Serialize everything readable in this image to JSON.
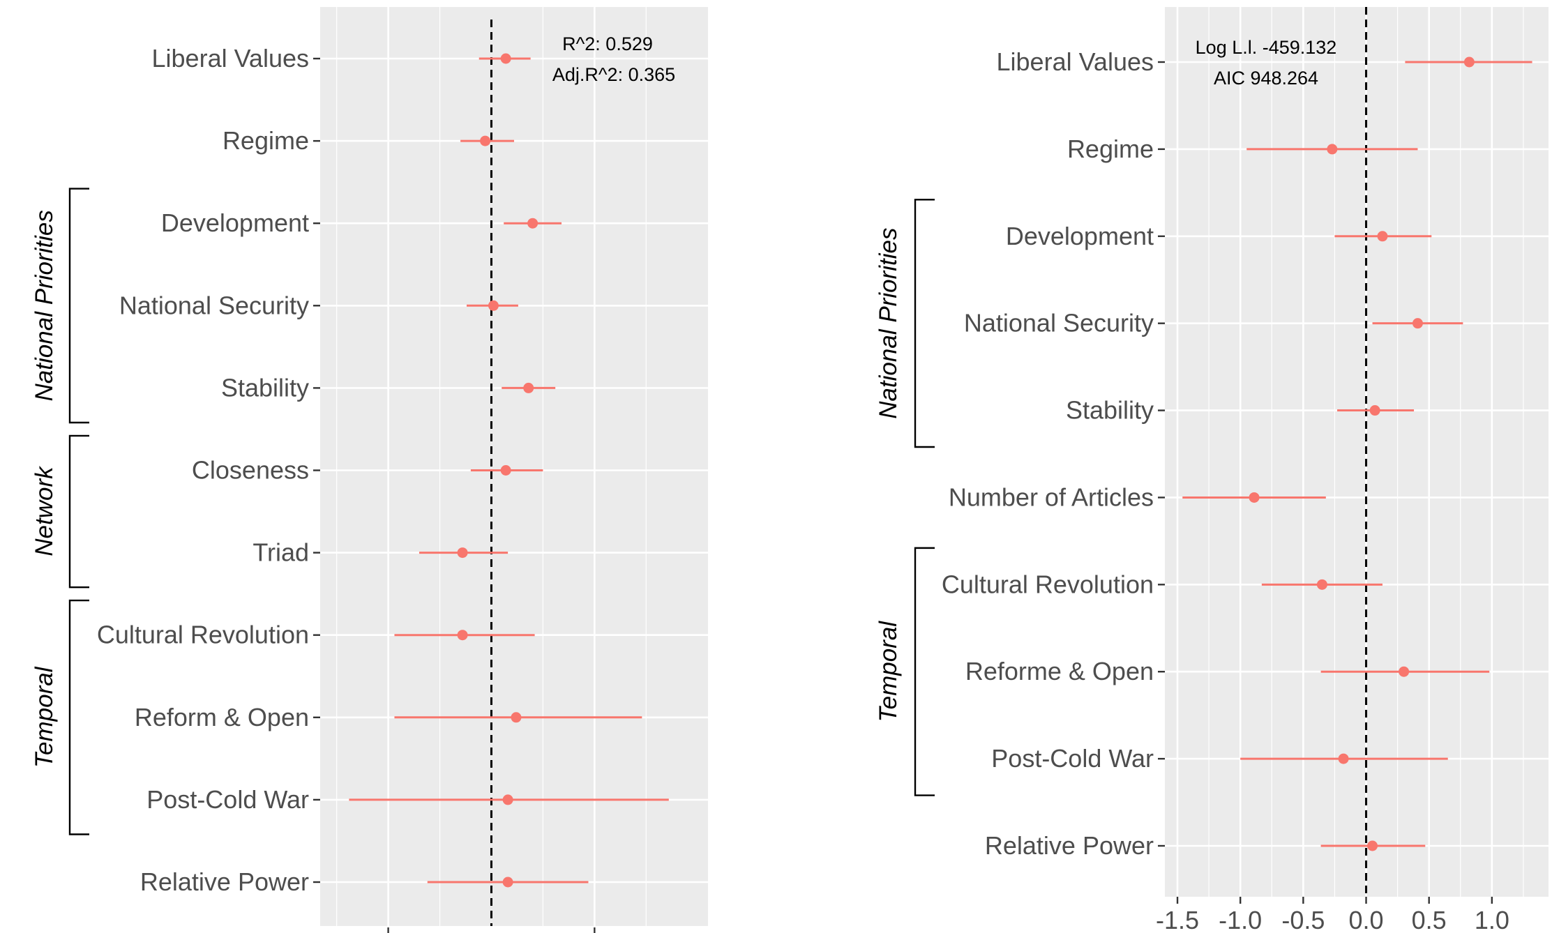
{
  "chart_data": [
    {
      "type": "coefficient_plot",
      "title": "",
      "xlabel": "",
      "ylabel": "",
      "xlim": [
        -0.83,
        1.05
      ],
      "x_tick_values": [
        -0.5,
        0.5
      ],
      "x_tick_labels": [],
      "grid": true,
      "reference_line": 0,
      "annotations": [
        "R^2: 0.529",
        "Adj.R^2: 0.365"
      ],
      "terms": [
        {
          "label": "Liberal Values",
          "estimate": 0.07,
          "low": -0.06,
          "high": 0.19
        },
        {
          "label": "Regime",
          "estimate": -0.03,
          "low": -0.15,
          "high": 0.11
        },
        {
          "label": "Development",
          "estimate": 0.2,
          "low": 0.06,
          "high": 0.34
        },
        {
          "label": "National Security",
          "estimate": 0.01,
          "low": -0.12,
          "high": 0.13
        },
        {
          "label": "Stability",
          "estimate": 0.18,
          "low": 0.05,
          "high": 0.31
        },
        {
          "label": "Closeness",
          "estimate": 0.07,
          "low": -0.1,
          "high": 0.25
        },
        {
          "label": "Triad",
          "estimate": -0.14,
          "low": -0.35,
          "high": 0.08
        },
        {
          "label": "Cultural Revolution",
          "estimate": -0.14,
          "low": -0.47,
          "high": 0.21
        },
        {
          "label": "Reform & Open",
          "estimate": 0.12,
          "low": -0.47,
          "high": 0.73
        },
        {
          "label": "Post-Cold War",
          "estimate": 0.08,
          "low": -0.69,
          "high": 0.86
        },
        {
          "label": "Relative Power",
          "estimate": 0.08,
          "low": -0.31,
          "high": 0.47
        }
      ],
      "groups": [
        {
          "label": "National Priorities",
          "from": "Development",
          "to": "Stability"
        },
        {
          "label": "Network",
          "from": "Closeness",
          "to": "Triad"
        },
        {
          "label": "Temporal",
          "from": "Cultural Revolution",
          "to": "Post-Cold War"
        }
      ]
    },
    {
      "type": "coefficient_plot",
      "title": "",
      "xlabel": "",
      "ylabel": "",
      "xlim": [
        -1.6,
        1.45
      ],
      "x_tick_values": [
        -1.5,
        -1.0,
        -0.5,
        0.0,
        0.5,
        1.0
      ],
      "x_tick_labels": [
        "-1.5",
        "-1.0",
        "-0.5",
        "0.0",
        "0.5",
        "1.0"
      ],
      "grid": true,
      "reference_line": 0,
      "annotations": [
        "Log L.l. -459.132",
        "AIC 948.264"
      ],
      "terms": [
        {
          "label": "Liberal Values",
          "estimate": 0.82,
          "low": 0.31,
          "high": 1.32
        },
        {
          "label": "Regime",
          "estimate": -0.27,
          "low": -0.95,
          "high": 0.41
        },
        {
          "label": "Development",
          "estimate": 0.13,
          "low": -0.25,
          "high": 0.52
        },
        {
          "label": "National Security",
          "estimate": 0.41,
          "low": 0.05,
          "high": 0.77
        },
        {
          "label": "Stability",
          "estimate": 0.07,
          "low": -0.23,
          "high": 0.38
        },
        {
          "label": "Number of Articles",
          "estimate": -0.89,
          "low": -1.46,
          "high": -0.32
        },
        {
          "label": "Cultural Revolution",
          "estimate": -0.35,
          "low": -0.83,
          "high": 0.13
        },
        {
          "label": "Reforme & Open",
          "estimate": 0.3,
          "low": -0.36,
          "high": 0.98
        },
        {
          "label": "Post-Cold War",
          "estimate": -0.18,
          "low": -1.0,
          "high": 0.65
        },
        {
          "label": "Relative Power",
          "estimate": 0.05,
          "low": -0.36,
          "high": 0.47
        }
      ],
      "groups": [
        {
          "label": "National Priorities",
          "from": "Development",
          "to": "Stability"
        },
        {
          "label": "Temporal",
          "from": "Cultural Revolution",
          "to": "Post-Cold War"
        }
      ]
    }
  ],
  "colors": {
    "point": "#F8766D",
    "panel_background": "#EBEBEB",
    "grid": "#FFFFFF",
    "axis_text": "#4D4D4D",
    "reference_line": "#000000"
  }
}
